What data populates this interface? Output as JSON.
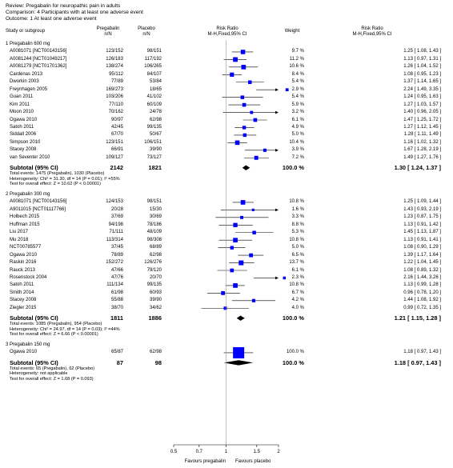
{
  "header": {
    "review": "Review:   Pregabalin for neuropathic pain in adults",
    "comparison": "Comparison:   4 Participants with at least one adverse event",
    "outcome": "Outcome:   1 At least one adverse event"
  },
  "columns": {
    "study": "Study or subgroup",
    "drug": "Pregabalin",
    "drug_sub": "n/N",
    "placebo": "Placebo",
    "placebo_sub": "n/N",
    "rr": "Risk Ratio",
    "rr_sub": "M-H,Fixed,95% CI",
    "weight": "Weight",
    "rr2": "Risk Ratio",
    "rr2_sub": "M-H,Fixed,95% CI"
  },
  "groups": [
    {
      "title": "1 Pregabalin 600 mg",
      "studies": [
        {
          "name": "A0081071 [NCT00143156]",
          "drug": "123/152",
          "placebo": "98/151",
          "weight": "9.7 %",
          "ci": "1.25 [ 1.08, 1.43 ]",
          "rr": 1.25,
          "lo": 1.08,
          "hi": 1.43,
          "w": 9.7
        },
        {
          "name": "A0081244 [NCT01049217]",
          "drug": "126/183",
          "placebo": "117/192",
          "weight": "11.2 %",
          "ci": "1.13 [ 0.97, 1.31 ]",
          "rr": 1.13,
          "lo": 0.97,
          "hi": 1.31,
          "w": 11.2
        },
        {
          "name": "A0081279 [NCT01701362]",
          "drug": "138/274",
          "placebo": "106/265",
          "weight": "10.6 %",
          "ci": "1.26 [ 1.04, 1.52 ]",
          "rr": 1.26,
          "lo": 1.04,
          "hi": 1.52,
          "w": 10.6
        },
        {
          "name": "Cardenas 2013",
          "drug": "95/112",
          "placebo": "84/107",
          "weight": "8.4 %",
          "ci": "1.08 [ 0.95, 1.23 ]",
          "rr": 1.08,
          "lo": 0.95,
          "hi": 1.23,
          "w": 8.4
        },
        {
          "name": "Dworkin 2003",
          "drug": "77/89",
          "placebo": "53/84",
          "weight": "5.4 %",
          "ci": "1.37 [ 1.14, 1.65 ]",
          "rr": 1.37,
          "lo": 1.14,
          "hi": 1.65,
          "w": 5.4
        },
        {
          "name": "Freynhagen 2005",
          "drug": "169/273",
          "placebo": "18/65",
          "weight": "2.9 %",
          "ci": "2.24 [ 1.49, 3.35 ]",
          "rr": 2.24,
          "lo": 1.49,
          "hi": 3.35,
          "w": 2.9
        },
        {
          "name": "Guan 2011",
          "drug": "103/206",
          "placebo": "41/102",
          "weight": "5.4 %",
          "ci": "1.24 [ 0.95, 1.63 ]",
          "rr": 1.24,
          "lo": 0.95,
          "hi": 1.63,
          "w": 5.4
        },
        {
          "name": "Kim 2011",
          "drug": "77/110",
          "placebo": "60/109",
          "weight": "5.9 %",
          "ci": "1.27 [ 1.03, 1.57 ]",
          "rr": 1.27,
          "lo": 1.03,
          "hi": 1.57,
          "w": 5.9
        },
        {
          "name": "Moon 2010",
          "drug": "70/162",
          "placebo": "24/78",
          "weight": "3.2 %",
          "ci": "1.40 [ 0.96, 2.05 ]",
          "rr": 1.4,
          "lo": 0.96,
          "hi": 2.05,
          "w": 3.2
        },
        {
          "name": "Ogawa 2010",
          "drug": "90/97",
          "placebo": "62/98",
          "weight": "6.1 %",
          "ci": "1.47 [ 1.25, 1.72 ]",
          "rr": 1.47,
          "lo": 1.25,
          "hi": 1.72,
          "w": 6.1
        },
        {
          "name": "Satoh 2011",
          "drug": "42/45",
          "placebo": "99/135",
          "weight": "4.9 %",
          "ci": "1.27 [ 1.12, 1.45 ]",
          "rr": 1.27,
          "lo": 1.12,
          "hi": 1.45,
          "w": 4.9
        },
        {
          "name": "Siddall 2006",
          "drug": "67/70",
          "placebo": "50/67",
          "weight": "5.0 %",
          "ci": "1.28 [ 1.11, 1.49 ]",
          "rr": 1.28,
          "lo": 1.11,
          "hi": 1.49,
          "w": 5.0
        },
        {
          "name": "Simpson 2010",
          "drug": "123/151",
          "placebo": "106/151",
          "weight": "10.4 %",
          "ci": "1.16 [ 1.02, 1.32 ]",
          "rr": 1.16,
          "lo": 1.02,
          "hi": 1.32,
          "w": 10.4
        },
        {
          "name": "Stacey 2008",
          "drug": "66/91",
          "placebo": "39/90",
          "weight": "3.9 %",
          "ci": "1.67 [ 1.28, 2.19 ]",
          "rr": 1.67,
          "lo": 1.28,
          "hi": 2.19,
          "w": 3.9
        },
        {
          "name": "van Seventer 2010",
          "drug": "109/127",
          "placebo": "73/127",
          "weight": "7.2 %",
          "ci": "1.49 [ 1.27, 1.76 ]",
          "rr": 1.49,
          "lo": 1.27,
          "hi": 1.76,
          "w": 7.2
        }
      ],
      "subtotal": {
        "label": "Subtotal (95% CI)",
        "drug": "2142",
        "placebo": "1821",
        "weight": "100.0 %",
        "ci": "1.30 [ 1.24, 1.37 ]",
        "rr": 1.3,
        "lo": 1.24,
        "hi": 1.37
      },
      "notes": [
        "Total events: 1475 (Pregabalin), 1030 (Placebo)",
        "Heterogeneity: Chi² = 31.30, df = 14 (P = 0.01); I² =55%",
        "Test for overall effect: Z = 10.62 (P < 0.00001)"
      ]
    },
    {
      "title": "2 Pregabalin 300 mg",
      "studies": [
        {
          "name": "A0081071 [NCT00143156]",
          "drug": "124/153",
          "placebo": "98/151",
          "weight": "10.8 %",
          "ci": "1.25 [ 1.09, 1.44 ]",
          "rr": 1.25,
          "lo": 1.09,
          "hi": 1.44,
          "w": 10.8
        },
        {
          "name": "A9011015 [NCT01117766]",
          "drug": "20/28",
          "placebo": "15/30",
          "weight": "1.6 %",
          "ci": "1.43 [ 0.93, 2.19 ]",
          "rr": 1.43,
          "lo": 0.93,
          "hi": 2.19,
          "w": 1.6
        },
        {
          "name": "Holbech 2015",
          "drug": "37/69",
          "placebo": "30/69",
          "weight": "3.3 %",
          "ci": "1.23 [ 0.87, 1.75 ]",
          "rr": 1.23,
          "lo": 0.87,
          "hi": 1.75,
          "w": 3.3
        },
        {
          "name": "Huffman 2015",
          "drug": "94/198",
          "placebo": "78/186",
          "weight": "8.8 %",
          "ci": "1.13 [ 0.91, 1.42 ]",
          "rr": 1.13,
          "lo": 0.91,
          "hi": 1.42,
          "w": 8.8
        },
        {
          "name": "Liu 2017",
          "drug": "71/111",
          "placebo": "48/109",
          "weight": "5.3 %",
          "ci": "1.45 [ 1.13, 1.87 ]",
          "rr": 1.45,
          "lo": 1.13,
          "hi": 1.87,
          "w": 5.3
        },
        {
          "name": "Mu 2018",
          "drug": "113/314",
          "placebo": "98/308",
          "weight": "10.8 %",
          "ci": "1.13 [ 0.91, 1.41 ]",
          "rr": 1.13,
          "lo": 0.91,
          "hi": 1.41,
          "w": 10.8
        },
        {
          "name": "NCT00785577",
          "drug": "37/45",
          "placebo": "68/89",
          "weight": "5.0 %",
          "ci": "1.08 [ 0.90, 1.29 ]",
          "rr": 1.08,
          "lo": 0.9,
          "hi": 1.29,
          "w": 5.0
        },
        {
          "name": "Ogawa 2010",
          "drug": "78/89",
          "placebo": "62/98",
          "weight": "6.5 %",
          "ci": "1.39 [ 1.17, 1.64 ]",
          "rr": 1.39,
          "lo": 1.17,
          "hi": 1.64,
          "w": 6.5
        },
        {
          "name": "Raskin 2016",
          "drug": "152/272",
          "placebo": "126/276",
          "weight": "13.7 %",
          "ci": "1.22 [ 1.04, 1.45 ]",
          "rr": 1.22,
          "lo": 1.04,
          "hi": 1.45,
          "w": 13.7
        },
        {
          "name": "Rauck 2013",
          "drug": "47/66",
          "placebo": "79/120",
          "weight": "6.1 %",
          "ci": "1.08 [ 0.89, 1.32 ]",
          "rr": 1.08,
          "lo": 0.89,
          "hi": 1.32,
          "w": 6.1
        },
        {
          "name": "Rosenstock 2004",
          "drug": "47/76",
          "placebo": "20/70",
          "weight": "2.3 %",
          "ci": "2.16 [ 1.44, 3.26 ]",
          "rr": 2.16,
          "lo": 1.44,
          "hi": 3.26,
          "w": 2.3
        },
        {
          "name": "Satoh 2011",
          "drug": "111/134",
          "placebo": "99/135",
          "weight": "10.8 %",
          "ci": "1.13 [ 0.99, 1.28 ]",
          "rr": 1.13,
          "lo": 0.99,
          "hi": 1.28,
          "w": 10.8
        },
        {
          "name": "Smith 2014",
          "drug": "61/98",
          "placebo": "60/93",
          "weight": "6.7 %",
          "ci": "0.96 [ 0.78, 1.20 ]",
          "rr": 0.96,
          "lo": 0.78,
          "hi": 1.2,
          "w": 6.7
        },
        {
          "name": "Stacey 2008",
          "drug": "55/88",
          "placebo": "39/90",
          "weight": "4.2 %",
          "ci": "1.44 [ 1.08, 1.92 ]",
          "rr": 1.44,
          "lo": 1.08,
          "hi": 1.92,
          "w": 4.2
        },
        {
          "name": "Ziegler 2015",
          "drug": "38/70",
          "placebo": "34/62",
          "weight": "4.0 %",
          "ci": "0.99 [ 0.72, 1.35 ]",
          "rr": 0.99,
          "lo": 0.72,
          "hi": 1.35,
          "w": 4.0
        }
      ],
      "subtotal": {
        "label": "Subtotal (95% CI)",
        "drug": "1811",
        "placebo": "1886",
        "weight": "100.0 %",
        "ci": "1.21 [ 1.15, 1.28 ]",
        "rr": 1.21,
        "lo": 1.15,
        "hi": 1.28
      },
      "notes": [
        "Total events: 1085 (Pregabalin), 954 (Placebo)",
        "Heterogeneity: Chi² = 24.97, df = 14 (P = 0.03); I² =44%",
        "Test for overall effect: Z = 6.66 (P < 0.00001)"
      ]
    },
    {
      "title": "3 Pregabalin 150 mg",
      "studies": [
        {
          "name": "Ogawa 2010",
          "drug": "65/87",
          "placebo": "62/98",
          "weight": "100.0 %",
          "ci": "1.18 [ 0.97, 1.43 ]",
          "rr": 1.18,
          "lo": 0.97,
          "hi": 1.43,
          "w": 100.0
        }
      ],
      "subtotal": {
        "label": "Subtotal (95% CI)",
        "drug": "87",
        "placebo": "98",
        "weight": "100.0 %",
        "ci": "1.18 [ 0.97, 1.43 ]",
        "rr": 1.18,
        "lo": 0.97,
        "hi": 1.43
      },
      "notes": [
        "Total events: 65 (Pregabalin), 62 (Placebo)",
        "Heterogeneity: not applicable",
        "Test for overall effect: Z = 1.68 (P = 0.093)"
      ]
    }
  ],
  "axis": {
    "ticks": [
      0.5,
      0.7,
      1,
      1.5,
      2
    ],
    "tick_labels": [
      "0.5",
      "0.7",
      "1",
      "1.5",
      "2"
    ],
    "scale": "log",
    "xlim": [
      0.5,
      2
    ],
    "favours_left": "Favours pregabalin",
    "favours_right": "Favours placebo"
  },
  "colors": {
    "marker": "#0000ff",
    "diamond": "#000000",
    "line": "#000000",
    "null_line": "#999999"
  }
}
